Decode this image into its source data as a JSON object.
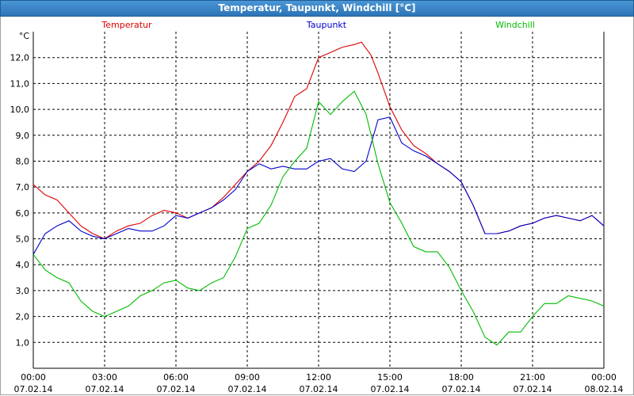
{
  "window": {
    "title": "Temperatur, Taupunkt, Windchill [°C]"
  },
  "chart_data": {
    "type": "line",
    "title": "Temperatur, Taupunkt, Windchill [°C]",
    "y_unit": "°C",
    "ylim": [
      0,
      13
    ],
    "y_ticks": [
      "1,0",
      "2,0",
      "3,0",
      "4,0",
      "5,0",
      "6,0",
      "7,0",
      "8,0",
      "9,0",
      "10,0",
      "11,0",
      "12,0"
    ],
    "x_ticks": [
      {
        "time": "00:00",
        "date": "07.02.14"
      },
      {
        "time": "03:00",
        "date": "07.02.14"
      },
      {
        "time": "06:00",
        "date": "07.02.14"
      },
      {
        "time": "09:00",
        "date": "07.02.14"
      },
      {
        "time": "12:00",
        "date": "07.02.14"
      },
      {
        "time": "15:00",
        "date": "07.02.14"
      },
      {
        "time": "18:00",
        "date": "07.02.14"
      },
      {
        "time": "21:00",
        "date": "07.02.14"
      },
      {
        "time": "00:00",
        "date": "08.02.14"
      }
    ],
    "grid": true,
    "series": [
      {
        "name": "Temperatur",
        "color": "#dd0000",
        "x": [
          0,
          0.5,
          1,
          1.5,
          2,
          2.5,
          3,
          3.5,
          4,
          4.5,
          5,
          5.5,
          6,
          6.5,
          7,
          7.5,
          8,
          8.5,
          9,
          9.5,
          10,
          10.5,
          11,
          11.5,
          12,
          12.5,
          13,
          13.5,
          13.8,
          14.2,
          14.5,
          15,
          15.5,
          16,
          16.5,
          17,
          17.5,
          18,
          18.5,
          19,
          19.5,
          20,
          20.5,
          21,
          21.5,
          22,
          22.5,
          23,
          23.5,
          24
        ],
        "y": [
          7.1,
          6.7,
          6.5,
          6.0,
          5.5,
          5.2,
          5.0,
          5.3,
          5.5,
          5.6,
          5.9,
          6.1,
          6.0,
          5.8,
          6.0,
          6.2,
          6.6,
          7.1,
          7.6,
          8.0,
          8.6,
          9.5,
          10.5,
          10.8,
          12.0,
          12.2,
          12.4,
          12.5,
          12.6,
          12.1,
          11.4,
          10.1,
          9.2,
          8.6,
          8.3,
          7.9,
          7.6,
          7.2,
          6.3,
          5.2,
          5.2,
          5.3,
          5.5,
          5.6,
          5.8,
          5.9,
          5.8,
          5.7,
          5.9,
          5.5
        ]
      },
      {
        "name": "Taupunkt",
        "color": "#0000cc",
        "x": [
          0,
          0.5,
          1,
          1.5,
          2,
          2.5,
          3,
          3.5,
          4,
          4.5,
          5,
          5.5,
          6,
          6.5,
          7,
          7.5,
          8,
          8.5,
          9,
          9.5,
          10,
          10.5,
          11,
          11.5,
          12,
          12.5,
          13,
          13.5,
          14,
          14.5,
          15,
          15.5,
          16,
          16.5,
          17,
          17.5,
          18,
          18.5,
          19,
          19.5,
          20,
          20.5,
          21,
          21.5,
          22,
          22.5,
          23,
          23.5,
          24
        ],
        "y": [
          4.4,
          5.2,
          5.5,
          5.7,
          5.3,
          5.1,
          5.0,
          5.2,
          5.4,
          5.3,
          5.3,
          5.5,
          5.9,
          5.8,
          6.0,
          6.2,
          6.5,
          6.9,
          7.6,
          7.9,
          7.7,
          7.8,
          7.7,
          7.7,
          8.0,
          8.1,
          7.7,
          7.6,
          8.0,
          9.6,
          9.7,
          8.7,
          8.4,
          8.2,
          7.9,
          7.6,
          7.2,
          6.3,
          5.2,
          5.2,
          5.3,
          5.5,
          5.6,
          5.8,
          5.9,
          5.8,
          5.7,
          5.9,
          5.5
        ]
      },
      {
        "name": "Windchill",
        "color": "#00bb00",
        "x": [
          0,
          0.5,
          1,
          1.5,
          2,
          2.5,
          3,
          3.5,
          4,
          4.5,
          5,
          5.5,
          6,
          6.5,
          7,
          7.5,
          8,
          8.5,
          9,
          9.5,
          10,
          10.5,
          11,
          11.5,
          12,
          12.5,
          13,
          13.5,
          14,
          14.5,
          15,
          15.5,
          16,
          16.5,
          17,
          17.5,
          18,
          18.5,
          19,
          19.5,
          20,
          20.5,
          21,
          21.5,
          22,
          22.5,
          23,
          23.5,
          24
        ],
        "y": [
          4.4,
          3.8,
          3.5,
          3.3,
          2.6,
          2.2,
          2.0,
          2.2,
          2.4,
          2.8,
          3.0,
          3.3,
          3.4,
          3.1,
          3.0,
          3.3,
          3.5,
          4.3,
          5.4,
          5.6,
          6.3,
          7.4,
          8.0,
          8.5,
          10.3,
          9.8,
          10.3,
          10.7,
          9.8,
          7.9,
          6.4,
          5.6,
          4.7,
          4.5,
          4.5,
          3.9,
          3.0,
          2.2,
          1.2,
          0.9,
          1.4,
          1.4,
          2.0,
          2.5,
          2.5,
          2.8,
          2.7,
          2.6,
          2.4
        ]
      }
    ]
  }
}
